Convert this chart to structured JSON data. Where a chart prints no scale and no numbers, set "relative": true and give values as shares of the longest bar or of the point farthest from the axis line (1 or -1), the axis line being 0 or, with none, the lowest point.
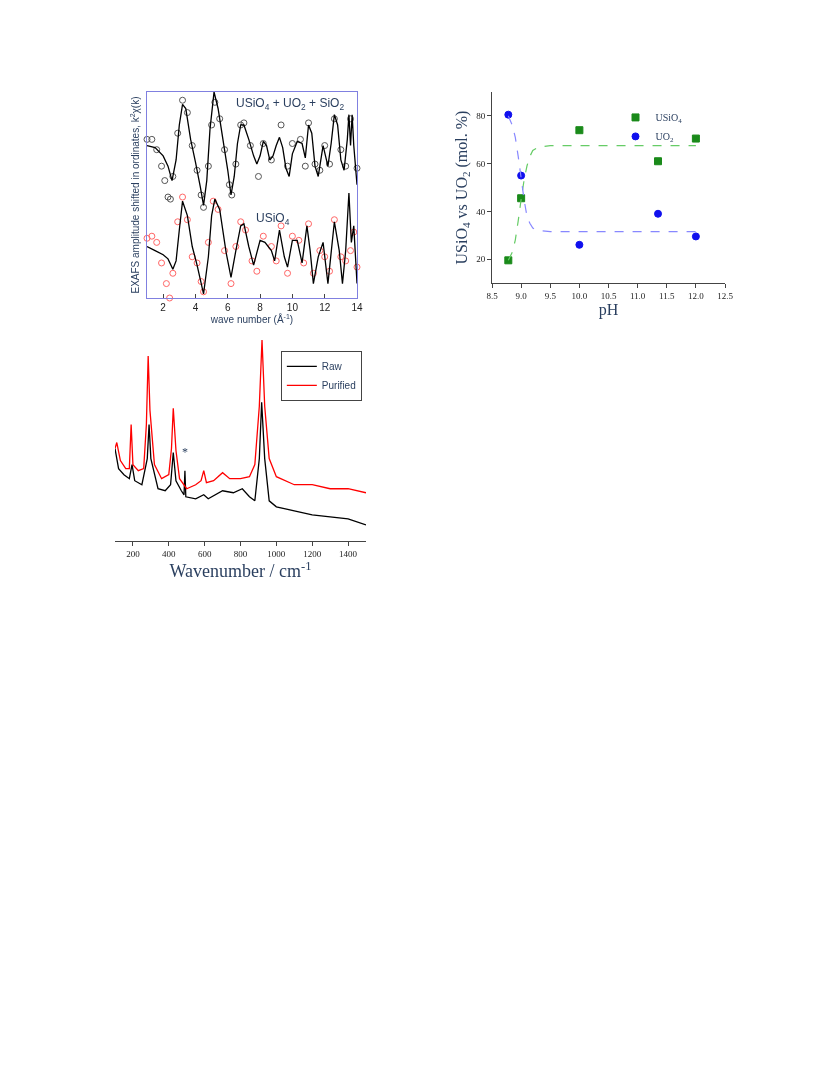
{
  "chart_data": [
    {
      "type": "line",
      "relative": true,
      "xlabel": "wave number (Å$^{-1}$)",
      "ylabel": "EXAFS amplitude shifted in ordinates, k$^{2}$χ(k)",
      "xlim": [
        1,
        14
      ],
      "xticks": [
        2,
        4,
        6,
        8,
        10,
        12,
        14
      ],
      "annotations": [
        "USiO$_{4}$ + UO$_{2}$ + SiO$_{2}$",
        "USiO$_{4}$"
      ],
      "series": [
        {
          "type": "scatter",
          "marker": "circle",
          "color": "#555555",
          "x": [
            1.0,
            1.3,
            1.6,
            1.9,
            2.1,
            2.3,
            2.45,
            2.6,
            2.9,
            3.2,
            3.5,
            3.8,
            4.1,
            4.35,
            4.5,
            4.8,
            5.0,
            5.2,
            5.5,
            5.8,
            6.1,
            6.25,
            6.5,
            6.8,
            7.0,
            7.4,
            7.9,
            8.2,
            8.7,
            9.3,
            9.7,
            10.0,
            10.5,
            10.8,
            11.0,
            11.4,
            11.7,
            12.0,
            12.3,
            12.6,
            13.0,
            13.3,
            13.6,
            14.0
          ],
          "values": [
            0.77,
            0.77,
            0.72,
            0.64,
            0.57,
            0.49,
            0.48,
            0.59,
            0.8,
            0.96,
            0.9,
            0.74,
            0.62,
            0.5,
            0.44,
            0.64,
            0.84,
            0.95,
            0.87,
            0.72,
            0.55,
            0.5,
            0.65,
            0.84,
            0.85,
            0.74,
            0.59,
            0.75,
            0.67,
            0.84,
            0.64,
            0.75,
            0.77,
            0.64,
            0.85,
            0.65,
            0.62,
            0.74,
            0.65,
            0.87,
            0.72,
            0.64,
            0.87,
            0.63
          ]
        },
        {
          "type": "line",
          "color": "#000000",
          "x": [
            1.0,
            1.5,
            2.0,
            2.3,
            2.55,
            2.8,
            3.0,
            3.2,
            3.4,
            3.7,
            4.0,
            4.3,
            4.5,
            4.7,
            4.9,
            5.15,
            5.4,
            5.7,
            6.0,
            6.2,
            6.4,
            6.6,
            6.8,
            7.0,
            7.3,
            7.6,
            7.8,
            8.0,
            8.2,
            8.4,
            8.6,
            8.8,
            9.0,
            9.2,
            9.4,
            9.6,
            9.8,
            10.0,
            10.3,
            10.6,
            10.8,
            11.0,
            11.2,
            11.4,
            11.6,
            11.9,
            12.2,
            12.4,
            12.6,
            12.8,
            13.0,
            13.2,
            13.4,
            13.5,
            13.6,
            13.7,
            13.8,
            14.0
          ],
          "values": [
            0.74,
            0.73,
            0.69,
            0.64,
            0.57,
            0.67,
            0.84,
            0.94,
            0.92,
            0.77,
            0.66,
            0.54,
            0.45,
            0.57,
            0.82,
            1.0,
            0.92,
            0.77,
            0.62,
            0.5,
            0.59,
            0.75,
            0.84,
            0.84,
            0.77,
            0.69,
            0.65,
            0.69,
            0.76,
            0.74,
            0.67,
            0.69,
            0.74,
            0.78,
            0.73,
            0.63,
            0.59,
            0.7,
            0.76,
            0.75,
            0.68,
            0.84,
            0.8,
            0.64,
            0.59,
            0.74,
            0.64,
            0.75,
            0.89,
            0.84,
            0.67,
            0.62,
            0.77,
            0.89,
            0.74,
            0.89,
            0.74,
            0.55
          ]
        },
        {
          "type": "scatter",
          "marker": "circle",
          "color": "#ff6666",
          "x": [
            1.0,
            1.3,
            1.6,
            1.9,
            2.2,
            2.4,
            2.6,
            2.9,
            3.2,
            3.5,
            3.8,
            4.1,
            4.35,
            4.5,
            4.8,
            5.1,
            5.4,
            5.8,
            6.2,
            6.5,
            6.8,
            7.1,
            7.5,
            7.8,
            8.2,
            8.7,
            9.0,
            9.3,
            9.7,
            10.0,
            10.4,
            10.7,
            11.0,
            11.3,
            11.7,
            12.0,
            12.3,
            12.6,
            13.0,
            13.3,
            13.6,
            13.8,
            14.0
          ],
          "values": [
            0.29,
            0.3,
            0.27,
            0.17,
            0.07,
            0.0,
            0.12,
            0.37,
            0.49,
            0.38,
            0.2,
            0.17,
            0.08,
            0.03,
            0.27,
            0.47,
            0.43,
            0.23,
            0.07,
            0.25,
            0.37,
            0.33,
            0.18,
            0.13,
            0.3,
            0.25,
            0.18,
            0.35,
            0.12,
            0.3,
            0.28,
            0.17,
            0.36,
            0.12,
            0.23,
            0.2,
            0.13,
            0.38,
            0.2,
            0.18,
            0.23,
            0.32,
            0.15
          ]
        },
        {
          "type": "line",
          "color": "#000000",
          "x": [
            1.0,
            1.5,
            2.0,
            2.3,
            2.6,
            2.8,
            3.0,
            3.2,
            3.5,
            3.8,
            4.1,
            4.5,
            4.8,
            5.0,
            5.2,
            5.5,
            5.9,
            6.2,
            6.5,
            6.8,
            7.0,
            7.3,
            7.6,
            8.0,
            8.3,
            8.7,
            8.9,
            9.2,
            9.5,
            9.7,
            10.0,
            10.3,
            10.6,
            10.9,
            11.1,
            11.3,
            11.6,
            11.9,
            12.2,
            12.6,
            12.9,
            13.1,
            13.3,
            13.5,
            13.65,
            13.8,
            14.0
          ],
          "values": [
            0.25,
            0.23,
            0.21,
            0.19,
            0.14,
            0.18,
            0.33,
            0.47,
            0.4,
            0.25,
            0.16,
            0.02,
            0.2,
            0.4,
            0.48,
            0.43,
            0.22,
            0.1,
            0.23,
            0.35,
            0.36,
            0.25,
            0.16,
            0.28,
            0.27,
            0.23,
            0.18,
            0.33,
            0.2,
            0.15,
            0.28,
            0.28,
            0.17,
            0.35,
            0.23,
            0.07,
            0.2,
            0.27,
            0.07,
            0.37,
            0.23,
            0.07,
            0.23,
            0.51,
            0.27,
            0.35,
            0.07
          ]
        }
      ]
    },
    {
      "type": "line",
      "relative": true,
      "xlabel": "Wavenumber / cm$^{-1}$",
      "xlim": [
        100,
        1500
      ],
      "xticks": [
        200,
        400,
        600,
        800,
        1000,
        1200,
        1400
      ],
      "legend": "top right",
      "marker": "none",
      "annotations": [
        "*"
      ],
      "series": [
        {
          "name": "Raw",
          "color": "#000000",
          "x": [
            100,
            120,
            150,
            180,
            195,
            210,
            250,
            280,
            290,
            300,
            340,
            380,
            410,
            425,
            440,
            470,
            485,
            490,
            495,
            550,
            595,
            620,
            700,
            760,
            810,
            850,
            880,
            905,
            918,
            935,
            960,
            1000,
            1100,
            1200,
            1300,
            1400,
            1500
          ],
          "values": [
            0.46,
            0.36,
            0.33,
            0.31,
            0.38,
            0.3,
            0.28,
            0.41,
            0.58,
            0.41,
            0.26,
            0.25,
            0.28,
            0.44,
            0.3,
            0.25,
            0.23,
            0.35,
            0.22,
            0.21,
            0.23,
            0.21,
            0.25,
            0.24,
            0.26,
            0.22,
            0.2,
            0.41,
            0.69,
            0.41,
            0.2,
            0.17,
            0.15,
            0.13,
            0.12,
            0.11,
            0.08
          ]
        },
        {
          "name": "Purified",
          "color": "#ff0000",
          "x": [
            100,
            110,
            130,
            160,
            180,
            190,
            200,
            230,
            260,
            275,
            285,
            295,
            320,
            360,
            400,
            415,
            425,
            440,
            460,
            500,
            550,
            580,
            595,
            610,
            650,
            700,
            740,
            800,
            850,
            880,
            905,
            920,
            935,
            960,
            1000,
            1100,
            1200,
            1300,
            1400,
            1500
          ],
          "values": [
            0.46,
            0.49,
            0.4,
            0.36,
            0.36,
            0.58,
            0.38,
            0.35,
            0.36,
            0.58,
            0.92,
            0.65,
            0.38,
            0.31,
            0.33,
            0.46,
            0.66,
            0.45,
            0.31,
            0.26,
            0.28,
            0.3,
            0.35,
            0.29,
            0.3,
            0.34,
            0.31,
            0.31,
            0.32,
            0.38,
            0.67,
            1.0,
            0.67,
            0.41,
            0.32,
            0.28,
            0.28,
            0.26,
            0.26,
            0.24
          ]
        }
      ]
    },
    {
      "type": "scatter",
      "xlabel": "pH",
      "ylabel": "USiO$_{4}$ vs UO$_{2}$ (mol. %)",
      "xlim": [
        8.5,
        12.5
      ],
      "ylim": [
        10,
        90
      ],
      "legend": "top right",
      "xticks": [
        8.5,
        {
          "value": 9,
          "label": "9.0"
        },
        9.5,
        {
          "value": 10,
          "label": "10.0"
        },
        10.5,
        {
          "value": 11,
          "label": "11.0"
        },
        11.5,
        {
          "value": 12,
          "label": "12.0"
        },
        12.5
      ],
      "yticks": [
        20,
        40,
        60,
        80
      ],
      "series": [
        {
          "name": "USiO$_{4}$",
          "marker": "square",
          "color": "#1a8a1a",
          "x": [
            8.78,
            9.0,
            10.0,
            11.35,
            12.0
          ],
          "values": [
            19.5,
            45.5,
            74,
            61,
            70.5
          ]
        },
        {
          "name": "UO$_{2}$",
          "marker": "circle",
          "color": "#1010ee",
          "x": [
            8.78,
            9.0,
            10.0,
            11.35,
            12.0
          ],
          "values": [
            80.5,
            55,
            26,
            39,
            29.5
          ]
        },
        {
          "type": "line",
          "line_style": "dashed",
          "color": "#66cc66",
          "x": [
            8.78,
            8.85,
            8.9,
            8.95,
            9.0,
            9.05,
            9.1,
            9.15,
            9.2,
            9.3,
            9.5,
            12.0
          ],
          "values": [
            19.5,
            23,
            28,
            36,
            45,
            53,
            59,
            63,
            65.5,
            67,
            67.5,
            67.5
          ]
        },
        {
          "type": "line",
          "line_style": "dashed",
          "color": "#8888ff",
          "x": [
            8.78,
            8.85,
            8.9,
            8.95,
            9.0,
            9.05,
            9.1,
            9.15,
            9.2,
            9.3,
            9.5,
            12.0
          ],
          "values": [
            80,
            76,
            71,
            63,
            54,
            45,
            38,
            35,
            33,
            32,
            31.5,
            31.5
          ]
        }
      ]
    }
  ]
}
